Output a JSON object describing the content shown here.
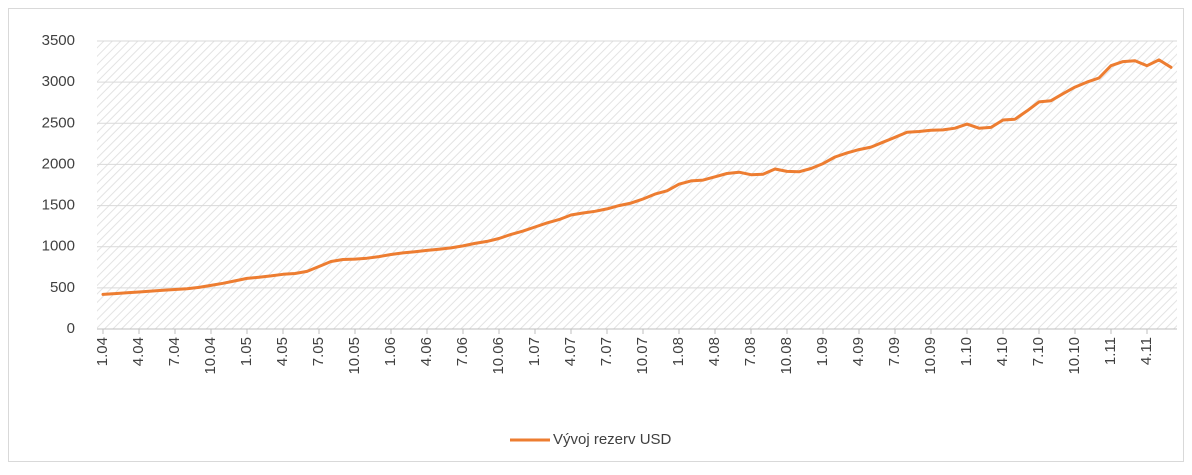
{
  "chart_data": {
    "type": "line",
    "categories": [
      "1.04",
      null,
      null,
      "4.04",
      null,
      null,
      "7.04",
      null,
      null,
      "10.04",
      null,
      null,
      "1.05",
      null,
      null,
      "4.05",
      null,
      null,
      "7.05",
      null,
      null,
      "10.05",
      null,
      null,
      "1.06",
      null,
      null,
      "4.06",
      null,
      null,
      "7.06",
      null,
      null,
      "10.06",
      null,
      null,
      "1.07",
      null,
      null,
      "4.07",
      null,
      null,
      "7.07",
      null,
      null,
      "10.07",
      null,
      null,
      "1.08",
      null,
      null,
      "4.08",
      null,
      null,
      "7.08",
      null,
      null,
      "10.08",
      null,
      null,
      "1.09",
      null,
      null,
      "4.09",
      null,
      null,
      "7.09",
      null,
      null,
      "10.09",
      null,
      null,
      "1.10",
      null,
      null,
      "4.10",
      null,
      null,
      "7.10",
      null,
      null,
      "10.10",
      null,
      null,
      "1.11",
      null,
      null,
      "4.11",
      null,
      null
    ],
    "series": [
      {
        "name": "Vývoj rezerv USD",
        "color": "#ed7d31",
        "values": [
          420,
          430,
          440,
          450,
          460,
          470,
          480,
          490,
          505,
          530,
          555,
          585,
          615,
          630,
          645,
          665,
          675,
          700,
          760,
          820,
          845,
          850,
          860,
          880,
          905,
          925,
          940,
          955,
          970,
          985,
          1010,
          1040,
          1065,
          1100,
          1150,
          1190,
          1240,
          1290,
          1330,
          1385,
          1410,
          1430,
          1460,
          1500,
          1530,
          1580,
          1640,
          1680,
          1760,
          1800,
          1810,
          1850,
          1890,
          1905,
          1875,
          1880,
          1945,
          1915,
          1910,
          1950,
          2010,
          2090,
          2140,
          2180,
          2210,
          2270,
          2330,
          2390,
          2400,
          2415,
          2420,
          2440,
          2490,
          2440,
          2450,
          2540,
          2550,
          2650,
          2760,
          2775,
          2860,
          2940,
          3000,
          3050,
          3200,
          3250,
          3260,
          3200,
          3270,
          3180
        ]
      }
    ],
    "ylim": [
      0,
      3500
    ],
    "yticks": [
      0,
      500,
      1000,
      1500,
      2000,
      2500,
      3000,
      3500
    ],
    "grid": true,
    "legend": "bottom"
  }
}
